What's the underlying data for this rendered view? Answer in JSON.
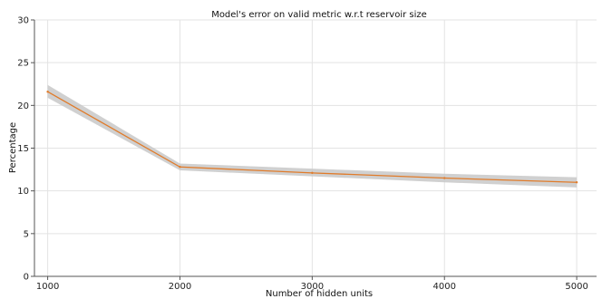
{
  "chart_data": {
    "type": "line",
    "title": "Model's error on valid metric w.r.t reservoir size",
    "xlabel": "Number of hidden units",
    "ylabel": "Percentage",
    "x": [
      1000,
      2000,
      3000,
      4000,
      5000
    ],
    "xlim": [
      900,
      5150
    ],
    "ylim": [
      0,
      30
    ],
    "xticks": [
      1000,
      2000,
      3000,
      4000,
      5000
    ],
    "yticks": [
      0,
      5,
      10,
      15,
      20,
      25,
      30
    ],
    "grid": true,
    "series": [
      {
        "values": [
          21.6,
          12.8,
          12.1,
          11.5,
          11.0
        ],
        "band_lower": [
          20.9,
          12.4,
          11.7,
          11.0,
          10.4
        ],
        "band_upper": [
          22.4,
          13.2,
          12.6,
          12.0,
          11.6
        ],
        "color": "#e07b2a",
        "band_color": "#c8c8c8"
      }
    ]
  }
}
